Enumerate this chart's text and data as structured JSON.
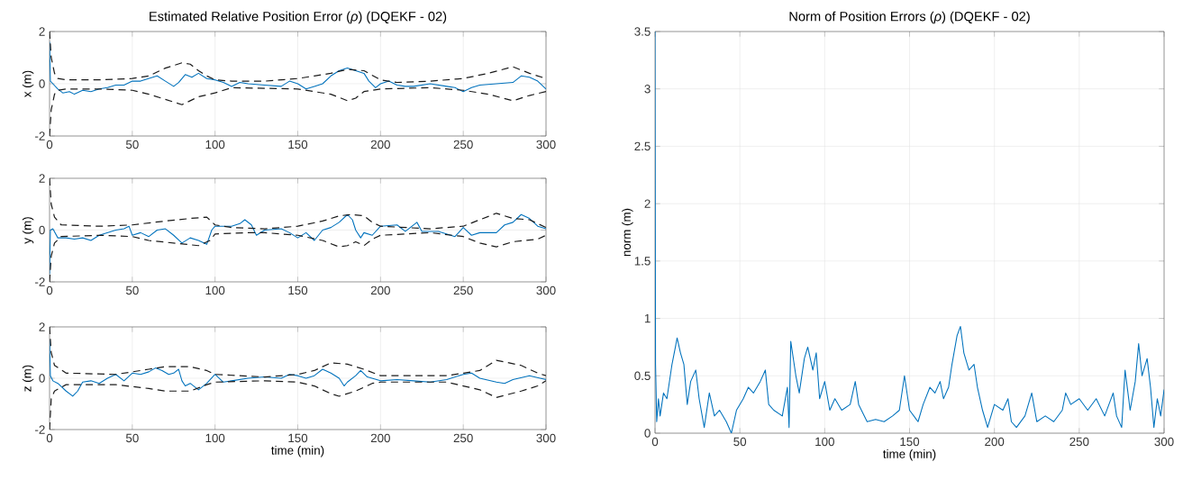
{
  "chart_data": [
    {
      "type": "line",
      "title": "Estimated Relative Position Error (*ρ*) (DQEKF - 02)",
      "ylabel": "x (m)",
      "xlim": [
        0,
        300
      ],
      "ylim": [
        -2,
        2
      ],
      "xticks": [
        0,
        50,
        100,
        150,
        200,
        250,
        300
      ],
      "yticks": [
        -2,
        0,
        2
      ],
      "grid": true,
      "series": [
        {
          "color": "#0072bd",
          "line_style": "solid",
          "x": [
            0,
            0.5,
            2,
            5,
            8,
            12,
            15,
            20,
            25,
            30,
            35,
            40,
            45,
            50,
            55,
            60,
            65,
            70,
            75,
            78,
            82,
            86,
            90,
            95,
            100,
            105,
            110,
            115,
            120,
            130,
            140,
            145,
            150,
            155,
            160,
            165,
            170,
            175,
            180,
            185,
            190,
            193,
            197,
            200,
            205,
            210,
            215,
            220,
            230,
            240,
            245,
            250,
            255,
            260,
            270,
            280,
            285,
            290,
            295,
            300
          ],
          "values": [
            1.6,
            0.1,
            0.0,
            -0.2,
            -0.35,
            -0.3,
            -0.4,
            -0.25,
            -0.3,
            -0.2,
            -0.15,
            -0.05,
            -0.05,
            0.1,
            0.1,
            0.2,
            0.3,
            0.1,
            -0.1,
            0.05,
            0.35,
            0.25,
            0.4,
            0.2,
            0.15,
            0.05,
            -0.1,
            0.05,
            0.0,
            -0.05,
            -0.1,
            0.1,
            0.0,
            -0.2,
            -0.1,
            0.0,
            0.3,
            0.5,
            0.6,
            0.5,
            0.4,
            0.1,
            -0.15,
            0.0,
            0.1,
            -0.05,
            -0.1,
            -0.1,
            0.0,
            -0.1,
            -0.15,
            -0.3,
            -0.15,
            -0.05,
            0.0,
            0.05,
            0.3,
            0.25,
            0.1,
            -0.2
          ]
        },
        {
          "color": "#1a1a1a",
          "line_style": "dashed",
          "x": [
            0,
            1,
            3,
            5,
            10,
            30,
            50,
            60,
            70,
            80,
            85,
            90,
            95,
            100,
            110,
            130,
            150,
            160,
            170,
            180,
            190,
            200,
            210,
            230,
            250,
            265,
            280,
            290,
            300
          ],
          "values": [
            2.0,
            1.0,
            0.4,
            0.2,
            0.15,
            0.15,
            0.2,
            0.3,
            0.6,
            0.8,
            0.75,
            0.5,
            0.3,
            0.15,
            0.1,
            0.1,
            0.2,
            0.3,
            0.4,
            0.55,
            0.5,
            0.15,
            0.05,
            0.1,
            0.2,
            0.4,
            0.65,
            0.4,
            0.2
          ]
        },
        {
          "color": "#1a1a1a",
          "line_style": "dashed",
          "x": [
            0,
            1,
            3,
            5,
            10,
            30,
            50,
            60,
            70,
            80,
            90,
            100,
            110,
            150,
            170,
            180,
            185,
            190,
            200,
            230,
            250,
            265,
            280,
            290,
            300
          ],
          "values": [
            -2.0,
            -1.0,
            -0.4,
            -0.25,
            -0.2,
            -0.2,
            -0.25,
            -0.4,
            -0.6,
            -0.8,
            -0.5,
            -0.35,
            -0.15,
            -0.2,
            -0.4,
            -0.65,
            -0.55,
            -0.3,
            -0.2,
            -0.15,
            -0.25,
            -0.4,
            -0.65,
            -0.45,
            -0.3
          ]
        }
      ]
    },
    {
      "type": "line",
      "ylabel": "y (m)",
      "xlim": [
        0,
        300
      ],
      "ylim": [
        -2,
        2
      ],
      "xticks": [
        0,
        50,
        100,
        150,
        200,
        250,
        300
      ],
      "yticks": [
        -2,
        0,
        2
      ],
      "grid": true,
      "series": [
        {
          "color": "#0072bd",
          "line_style": "solid",
          "x": [
            0,
            0.5,
            2,
            5,
            10,
            15,
            20,
            25,
            30,
            35,
            40,
            45,
            48,
            50,
            55,
            60,
            65,
            70,
            75,
            80,
            85,
            90,
            95,
            98,
            100,
            105,
            110,
            115,
            118,
            122,
            125,
            130,
            140,
            145,
            150,
            155,
            160,
            165,
            170,
            175,
            180,
            183,
            185,
            188,
            190,
            195,
            200,
            210,
            215,
            222,
            225,
            235,
            245,
            250,
            255,
            260,
            270,
            275,
            280,
            285,
            290,
            295,
            300
          ],
          "values": [
            -1.7,
            0.0,
            0.05,
            -0.3,
            -0.3,
            -0.35,
            -0.3,
            -0.4,
            -0.2,
            -0.1,
            0.0,
            0.05,
            0.15,
            -0.2,
            -0.1,
            -0.25,
            0.0,
            0.05,
            -0.2,
            -0.5,
            -0.3,
            -0.4,
            -0.55,
            0.0,
            0.15,
            0.15,
            0.15,
            0.25,
            0.4,
            0.2,
            -0.2,
            0.0,
            0.05,
            -0.1,
            -0.3,
            -0.1,
            -0.4,
            0.0,
            0.1,
            0.3,
            0.6,
            0.4,
            0.0,
            -0.3,
            -0.1,
            -0.2,
            0.15,
            0.2,
            -0.05,
            0.3,
            -0.05,
            -0.05,
            -0.25,
            0.1,
            -0.2,
            -0.1,
            -0.1,
            0.2,
            0.3,
            0.6,
            0.45,
            0.15,
            0.05
          ]
        },
        {
          "color": "#1a1a1a",
          "line_style": "dashed",
          "x": [
            0,
            1,
            3,
            7,
            30,
            50,
            70,
            85,
            95,
            100,
            110,
            130,
            150,
            165,
            175,
            182,
            190,
            195,
            200,
            230,
            250,
            260,
            270,
            280,
            290,
            300
          ],
          "values": [
            2.0,
            1.0,
            0.5,
            0.2,
            0.15,
            0.2,
            0.35,
            0.45,
            0.5,
            0.2,
            0.1,
            0.05,
            0.15,
            0.35,
            0.55,
            0.6,
            0.55,
            0.3,
            0.15,
            0.05,
            0.15,
            0.4,
            0.65,
            0.45,
            0.4,
            0.1
          ]
        },
        {
          "color": "#1a1a1a",
          "line_style": "dashed",
          "x": [
            0,
            1,
            3,
            7,
            30,
            50,
            60,
            75,
            90,
            97,
            100,
            120,
            130,
            150,
            165,
            175,
            180,
            185,
            190,
            195,
            200,
            230,
            250,
            260,
            270,
            280,
            295,
            300
          ],
          "values": [
            -2.0,
            -1.0,
            -0.5,
            -0.25,
            -0.2,
            -0.25,
            -0.4,
            -0.5,
            -0.6,
            -0.4,
            -0.15,
            -0.1,
            -0.1,
            -0.2,
            -0.4,
            -0.65,
            -0.6,
            -0.45,
            -0.6,
            -0.35,
            -0.2,
            -0.1,
            -0.25,
            -0.5,
            -0.65,
            -0.45,
            -0.35,
            -0.2
          ]
        }
      ]
    },
    {
      "type": "line",
      "xlabel": "time (min)",
      "ylabel": "z (m)",
      "xlim": [
        0,
        300
      ],
      "ylim": [
        -2,
        2
      ],
      "xticks": [
        0,
        50,
        100,
        150,
        200,
        250,
        300
      ],
      "yticks": [
        -2,
        0,
        2
      ],
      "grid": true,
      "series": [
        {
          "color": "#0072bd",
          "line_style": "solid",
          "x": [
            0,
            0.5,
            2,
            5,
            10,
            14,
            17,
            20,
            25,
            30,
            35,
            40,
            45,
            50,
            55,
            60,
            64,
            68,
            72,
            75,
            78,
            80,
            82,
            85,
            90,
            95,
            100,
            105,
            110,
            120,
            130,
            140,
            145,
            150,
            155,
            160,
            165,
            170,
            175,
            178,
            180,
            185,
            188,
            192,
            200,
            210,
            220,
            230,
            240,
            250,
            255,
            260,
            270,
            275,
            280,
            290,
            300
          ],
          "values": [
            1.5,
            0.1,
            -0.1,
            -0.2,
            -0.5,
            -0.7,
            -0.5,
            -0.15,
            -0.1,
            -0.2,
            0.0,
            0.15,
            -0.1,
            0.2,
            0.15,
            0.25,
            0.4,
            0.3,
            0.15,
            0.2,
            0.35,
            -0.1,
            -0.3,
            -0.2,
            -0.45,
            -0.2,
            0.15,
            -0.15,
            -0.1,
            0.0,
            0.05,
            0.0,
            0.15,
            0.1,
            0.0,
            0.1,
            0.35,
            0.2,
            0.0,
            -0.3,
            -0.15,
            0.1,
            0.3,
            0.05,
            -0.1,
            -0.05,
            -0.1,
            -0.15,
            -0.05,
            0.15,
            0.2,
            0.0,
            -0.15,
            -0.2,
            -0.05,
            0.1,
            -0.05
          ]
        },
        {
          "color": "#1a1a1a",
          "line_style": "dashed",
          "x": [
            0,
            1,
            3,
            10,
            40,
            60,
            70,
            85,
            95,
            100,
            130,
            150,
            160,
            170,
            180,
            190,
            200,
            240,
            250,
            260,
            270,
            285,
            295,
            300
          ],
          "values": [
            2.0,
            1.0,
            0.5,
            0.2,
            0.15,
            0.35,
            0.45,
            0.45,
            0.3,
            0.15,
            0.05,
            0.15,
            0.3,
            0.6,
            0.55,
            0.35,
            0.1,
            0.1,
            0.2,
            0.3,
            0.7,
            0.5,
            0.2,
            0.1
          ]
        },
        {
          "color": "#1a1a1a",
          "line_style": "dashed",
          "x": [
            0,
            1,
            3,
            10,
            40,
            60,
            70,
            85,
            95,
            100,
            130,
            150,
            160,
            170,
            175,
            185,
            195,
            200,
            240,
            250,
            260,
            270,
            285,
            295,
            300
          ],
          "values": [
            -2.0,
            -0.8,
            -0.5,
            -0.25,
            -0.25,
            -0.4,
            -0.5,
            -0.5,
            -0.25,
            -0.15,
            -0.1,
            -0.15,
            -0.3,
            -0.6,
            -0.7,
            -0.5,
            -0.2,
            -0.15,
            -0.15,
            -0.3,
            -0.45,
            -0.75,
            -0.5,
            -0.3,
            -0.1
          ]
        }
      ]
    },
    {
      "type": "line",
      "title": "Norm of Position Errors (*ρ*) (DQEKF - 02)",
      "xlabel": "time (min)",
      "ylabel": "norm (m)",
      "xlim": [
        0,
        300
      ],
      "ylim": [
        0,
        3.5
      ],
      "xticks": [
        0,
        50,
        100,
        150,
        200,
        250,
        300
      ],
      "yticks": [
        0,
        0.5,
        1,
        1.5,
        2,
        2.5,
        3,
        3.5
      ],
      "grid": true,
      "series": [
        {
          "color": "#0072bd",
          "line_style": "solid",
          "x": [
            0,
            0.3,
            1,
            2,
            3,
            5,
            7,
            10,
            12,
            13,
            15,
            17,
            19,
            21,
            24,
            26,
            29,
            32,
            35,
            38,
            42,
            45,
            48,
            52,
            55,
            58,
            62,
            65,
            67,
            70,
            75,
            78,
            79,
            80,
            83,
            85,
            88,
            90,
            93,
            95,
            97,
            100,
            103,
            106,
            110,
            115,
            118,
            120,
            125,
            130,
            135,
            140,
            144,
            147,
            150,
            155,
            158,
            162,
            165,
            168,
            170,
            173,
            175,
            178,
            180,
            182,
            185,
            188,
            190,
            193,
            196,
            200,
            205,
            208,
            210,
            213,
            218,
            222,
            225,
            230,
            235,
            240,
            242,
            245,
            250,
            255,
            260,
            265,
            270,
            272,
            275,
            277,
            280,
            283,
            285,
            287,
            290,
            292,
            294,
            296,
            298,
            300
          ],
          "values": [
            3.5,
            0.6,
            0.1,
            0.3,
            0.15,
            0.35,
            0.3,
            0.6,
            0.75,
            0.83,
            0.7,
            0.6,
            0.25,
            0.45,
            0.55,
            0.3,
            0.05,
            0.35,
            0.15,
            0.2,
            0.1,
            0.0,
            0.2,
            0.3,
            0.4,
            0.35,
            0.45,
            0.55,
            0.25,
            0.2,
            0.15,
            0.4,
            0.05,
            0.8,
            0.5,
            0.35,
            0.65,
            0.75,
            0.55,
            0.7,
            0.3,
            0.45,
            0.2,
            0.3,
            0.2,
            0.25,
            0.45,
            0.25,
            0.1,
            0.12,
            0.1,
            0.15,
            0.2,
            0.5,
            0.2,
            0.1,
            0.25,
            0.4,
            0.35,
            0.45,
            0.3,
            0.4,
            0.6,
            0.85,
            0.93,
            0.7,
            0.55,
            0.6,
            0.4,
            0.2,
            0.05,
            0.25,
            0.2,
            0.3,
            0.1,
            0.05,
            0.15,
            0.35,
            0.1,
            0.15,
            0.1,
            0.2,
            0.35,
            0.25,
            0.3,
            0.2,
            0.3,
            0.15,
            0.35,
            0.15,
            0.05,
            0.55,
            0.2,
            0.45,
            0.78,
            0.5,
            0.65,
            0.4,
            0.05,
            0.3,
            0.15,
            0.38
          ]
        }
      ]
    }
  ]
}
